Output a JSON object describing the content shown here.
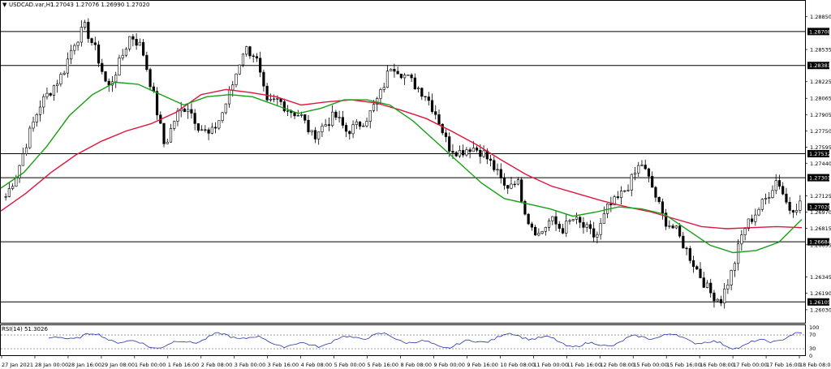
{
  "header": {
    "symbol": "USDCAD.var,H1",
    "ohlc": "1.27043 1.27076 1.26990 1.27020"
  },
  "indicator": {
    "label": "RSI(14) 51.3026",
    "levels": [
      100,
      70,
      30,
      0
    ]
  },
  "colors": {
    "candle": "#000000",
    "ma_fast": "#16a016",
    "ma_slow": "#e0143c",
    "rsi": "#2233aa",
    "hline": "#000000",
    "price_tag": "#000000"
  },
  "chart_data": {
    "type": "candlestick",
    "y_axis": {
      "ticks": [
        "1.28850",
        "1.28535",
        "1.28225",
        "1.28065",
        "1.27905",
        "1.27750",
        "1.27595",
        "1.27440",
        "1.27125",
        "1.26970",
        "1.26815",
        "1.26655",
        "1.26345",
        "1.26190",
        "1.26030"
      ],
      "ylim": [
        1.2592,
        1.2898
      ]
    },
    "x_axis": {
      "ticks": [
        "27 Jan 2021",
        "28 Jan 00:00",
        "28 Jan 16:00",
        "29 Jan 08:00",
        "1 Feb 00:00",
        "1 Feb 16:00",
        "2 Feb 08:00",
        "3 Feb 00:00",
        "3 Feb 16:00",
        "4 Feb 08:00",
        "5 Feb 00:00",
        "5 Feb 16:00",
        "8 Feb 08:00",
        "9 Feb 00:00",
        "9 Feb 16:00",
        "10 Feb 08:00",
        "11 Feb 00:00",
        "11 Feb 16:00",
        "12 Feb 08:00",
        "15 Feb 00:00",
        "15 Feb 16:00",
        "16 Feb 08:00",
        "17 Feb 00:00",
        "17 Feb 16:00",
        "18 Feb 08:00"
      ]
    },
    "horizontal_levels": [
      "1.28708",
      "1.28381",
      "1.27532",
      "1.27301",
      "1.26684",
      "1.26105"
    ],
    "current_price": "1.27020",
    "price_path": [
      1.2712,
      1.2735,
      1.277,
      1.28,
      1.2815,
      1.283,
      1.286,
      1.2875,
      1.285,
      1.2815,
      1.284,
      1.2868,
      1.2855,
      1.281,
      1.276,
      1.279,
      1.28,
      1.278,
      1.277,
      1.279,
      1.282,
      1.2855,
      1.2848,
      1.28,
      1.2805,
      1.2795,
      1.279,
      1.277,
      1.278,
      1.279,
      1.2775,
      1.278,
      1.279,
      1.281,
      1.284,
      1.283,
      1.282,
      1.281,
      1.279,
      1.276,
      1.2755,
      1.276,
      1.2755,
      1.274,
      1.272,
      1.273,
      1.269,
      1.2675,
      1.269,
      1.268,
      1.269,
      1.2682,
      1.2672,
      1.27,
      1.271,
      1.2725,
      1.2745,
      1.272,
      1.269,
      1.268,
      1.266,
      1.264,
      1.262,
      1.2612,
      1.264,
      1.268,
      1.2695,
      1.271,
      1.273,
      1.27,
      1.2705
    ],
    "ma_fast_path": [
      1.272,
      1.2735,
      1.276,
      1.279,
      1.281,
      1.2822,
      1.282,
      1.281,
      1.28,
      1.2808,
      1.281,
      1.2808,
      1.28,
      1.2792,
      1.2797,
      1.2805,
      1.2805,
      1.28,
      1.2785,
      1.2765,
      1.2745,
      1.2725,
      1.271,
      1.2705,
      1.27,
      1.2693,
      1.2697,
      1.2702,
      1.27,
      1.2695,
      1.268,
      1.2665,
      1.2658,
      1.266,
      1.2668,
      1.269
    ],
    "ma_slow_path": [
      1.2698,
      1.2715,
      1.2735,
      1.2752,
      1.2765,
      1.2775,
      1.2782,
      1.2793,
      1.281,
      1.2815,
      1.2812,
      1.2808,
      1.28,
      1.2803,
      1.2805,
      1.2802,
      1.2795,
      1.2787,
      1.2775,
      1.2762,
      1.2747,
      1.2733,
      1.2722,
      1.2715,
      1.2708,
      1.2702,
      1.2697,
      1.269,
      1.2683,
      1.2681,
      1.2682,
      1.2683,
      1.2682
    ]
  }
}
